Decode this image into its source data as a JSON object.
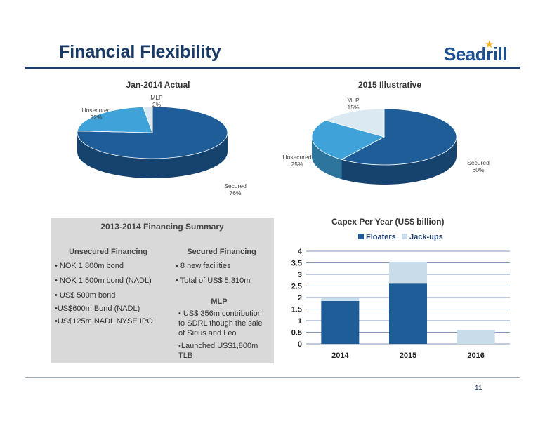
{
  "header": {
    "title": "Financial Flexibility",
    "logo_text": "Seadrill",
    "page_number": "11"
  },
  "pies": [
    {
      "title": "Jan-2014 Actual",
      "slices": [
        {
          "name": "Secured",
          "value": 76,
          "label": "76%",
          "color": "#1f5d99"
        },
        {
          "name": "Unsecured",
          "value": 22,
          "label": "22%",
          "color": "#3fa2d8"
        },
        {
          "name": "MLP",
          "value": 2,
          "label": "2%",
          "color": "#dbe9f3"
        }
      ]
    },
    {
      "title": "2015 Illustrative",
      "slices": [
        {
          "name": "Secured",
          "value": 60,
          "label": "60%",
          "color": "#1f5d99"
        },
        {
          "name": "Unsecured",
          "value": 25,
          "label": "25%",
          "color": "#3fa2d8"
        },
        {
          "name": "MLP",
          "value": 15,
          "label": "15%",
          "color": "#dbe9f3"
        }
      ]
    }
  ],
  "summary": {
    "title": "2013-2014 Financing Summary",
    "unsecured_head": "Unsecured Financing",
    "unsecured_items": [
      "• NOK 1,800m bond",
      "• NOK 1,500m bond (NADL)",
      "• US$ 500m bond",
      "•US$600m Bond (NADL)",
      "•US$125m NADL NYSE IPO"
    ],
    "secured_head": "Secured Financing",
    "secured_items": [
      "• 8 new facilities",
      "• Total of US$ 5,310m"
    ],
    "mlp_head": "MLP",
    "mlp_items": [
      "• US$ 356m contribution to SDRL though the sale of Sirius and Leo",
      "•Launched US$1,800m TLB"
    ]
  },
  "chart_data": {
    "type": "bar",
    "stacked": true,
    "title": "Capex Per Year (US$ billion)",
    "categories": [
      "2014",
      "2015",
      "2016"
    ],
    "series": [
      {
        "name": "Floaters",
        "values": [
          1.85,
          2.6,
          0
        ],
        "color": "#1f5d99"
      },
      {
        "name": "Jack-ups",
        "values": [
          0.15,
          0.95,
          0.6
        ],
        "color": "#c8dcea"
      }
    ],
    "ylim": [
      0,
      4
    ],
    "yticks": [
      "0",
      "0.5",
      "1",
      "1.5",
      "2",
      "2.5",
      "3",
      "3.5",
      "4"
    ],
    "legend": "top",
    "grid": true
  }
}
